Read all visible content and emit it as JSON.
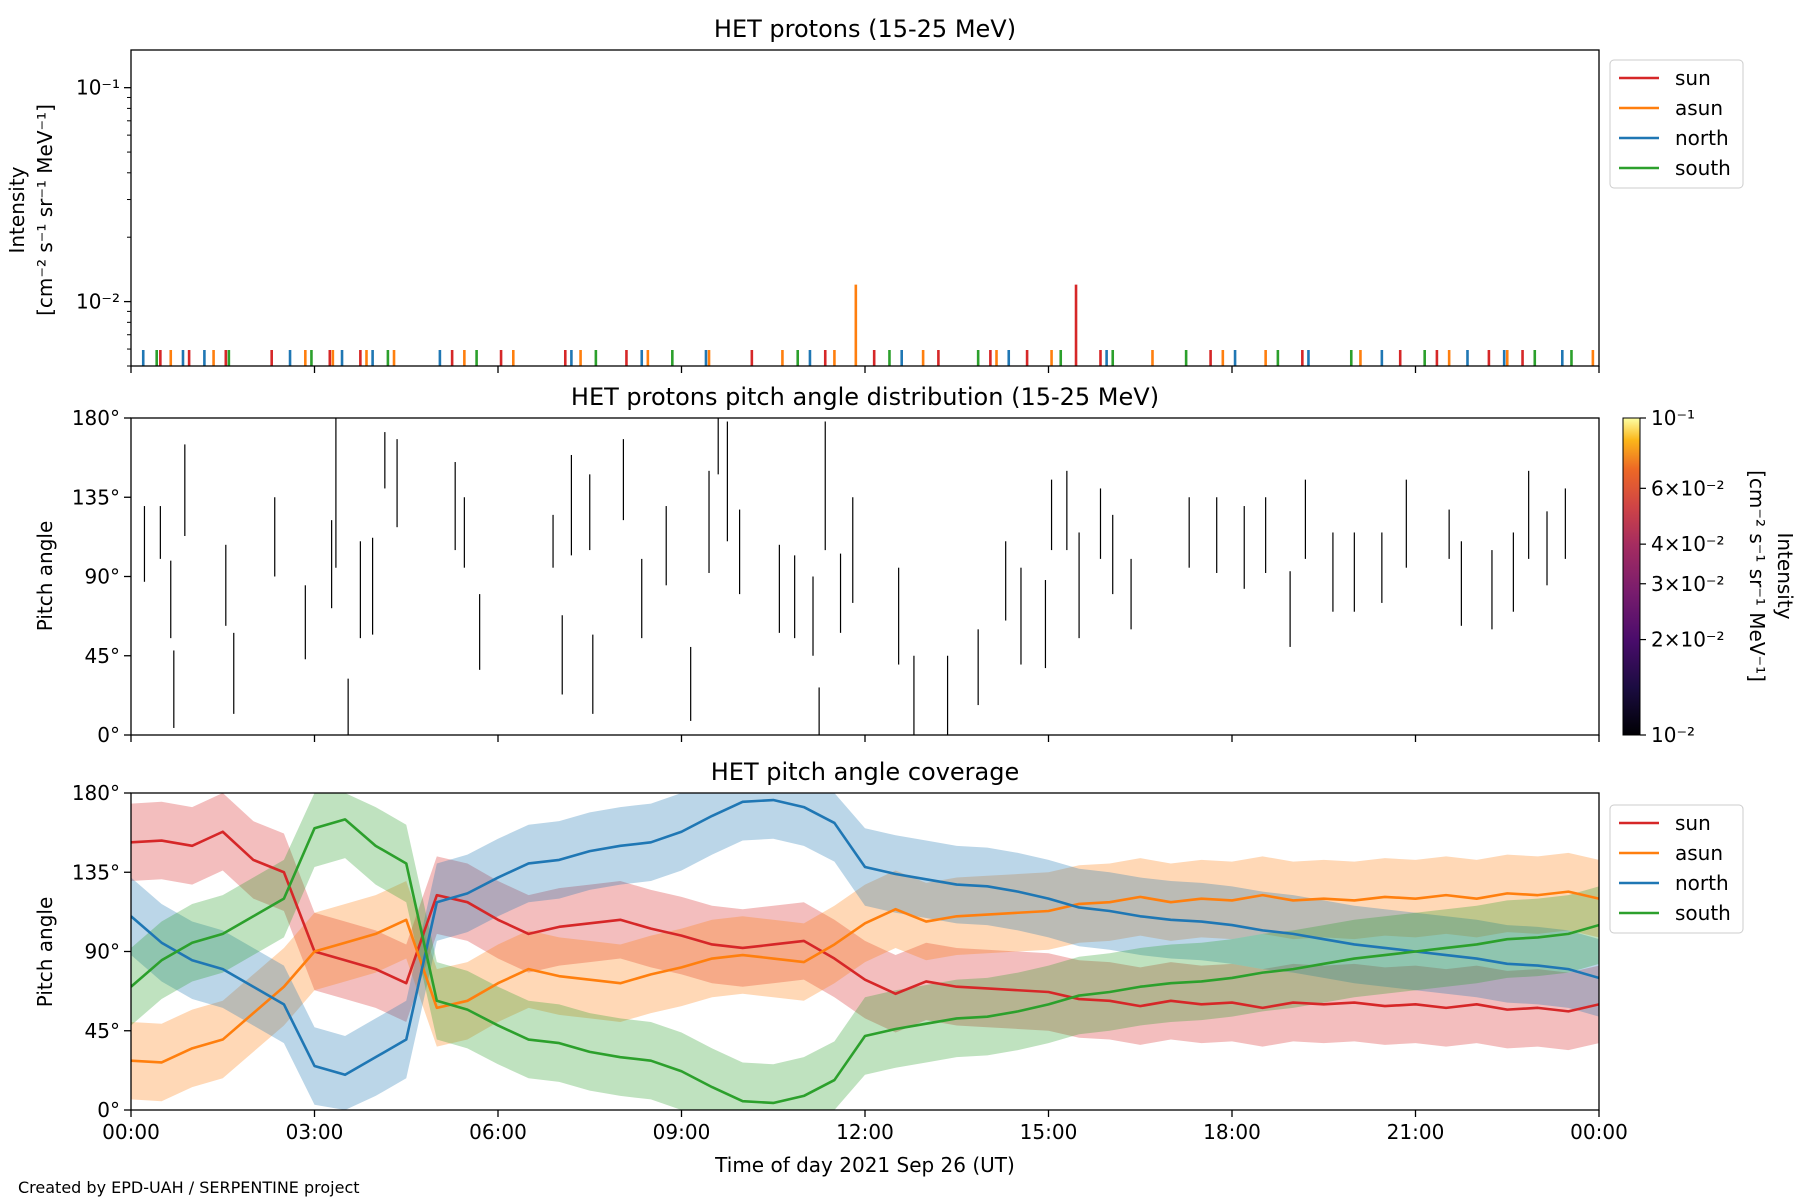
{
  "figure": {
    "credit": "Created by EPD-UAH / SERPENTINE project",
    "xlabel": "Time of day 2021 Sep 26 (UT)",
    "x_tick_labels": [
      "00:00",
      "03:00",
      "06:00",
      "09:00",
      "12:00",
      "15:00",
      "18:00",
      "21:00",
      "00:00"
    ]
  },
  "colors": {
    "sun": "#d62728",
    "asun": "#ff7f0e",
    "north": "#1f77b4",
    "south": "#2ca02c",
    "pad_line": "#000000"
  },
  "chart_data": [
    {
      "type": "line",
      "title": "HET protons (15-25 MeV)",
      "ylabel_lines": [
        "Intensity",
        "[cm⁻² s⁻¹ sr⁻¹ MeV⁻¹]"
      ],
      "yscale": "log",
      "ylim": [
        0.005,
        0.15
      ],
      "y_tick_labels": [
        {
          "value": 0.1,
          "label": "10⁻¹"
        },
        {
          "value": 0.01,
          "label": "10⁻²"
        }
      ],
      "xlim_hours": [
        0,
        24
      ],
      "legend": {
        "placement": "outside-right",
        "entries": [
          "sun",
          "asun",
          "north",
          "south"
        ]
      },
      "series": [
        {
          "name": "sun",
          "spikes_hours": [
            0.48,
            0.95,
            1.55,
            2.3,
            3.25,
            3.75,
            5.25,
            6.05,
            7.1,
            8.1,
            10.15,
            11.35,
            12.15,
            13.2,
            14.05,
            14.65,
            15.85,
            17.65,
            19.15,
            20.75,
            21.35,
            22.2,
            22.75
          ],
          "peaks": [
            {
              "hour": 15.45,
              "value": 0.012
            }
          ]
        },
        {
          "name": "asun",
          "spikes_hours": [
            0.65,
            1.35,
            2.85,
            3.3,
            3.85,
            4.3,
            5.45,
            6.25,
            7.35,
            8.45,
            9.45,
            10.65,
            11.5,
            12.95,
            14.15,
            15.05,
            16.7,
            17.85,
            18.55,
            20.1,
            21.55,
            22.5,
            23.9
          ],
          "peaks": [
            {
              "hour": 11.85,
              "value": 0.012
            }
          ]
        },
        {
          "name": "north",
          "spikes_hours": [
            0.2,
            0.85,
            1.2,
            2.6,
            3.45,
            3.95,
            5.05,
            7.2,
            8.35,
            9.4,
            11.1,
            12.6,
            14.35,
            15.95,
            18.05,
            19.25,
            20.45,
            21.85,
            22.45,
            23.4
          ],
          "peaks": []
        },
        {
          "name": "south",
          "spikes_hours": [
            0.42,
            1.6,
            2.95,
            4.2,
            5.65,
            7.6,
            8.85,
            10.9,
            12.4,
            13.85,
            15.2,
            16.05,
            17.25,
            18.75,
            19.95,
            21.15,
            22.95,
            23.55
          ],
          "peaks": []
        }
      ]
    },
    {
      "type": "heatmap",
      "title": "HET protons pitch angle distribution (15-25 MeV)",
      "ylabel": "Pitch angle",
      "ylim": [
        0,
        180
      ],
      "y_tick_labels": [
        "0°",
        "45°",
        "90°",
        "135°",
        "180°"
      ],
      "y_tick_values": [
        0,
        45,
        90,
        135,
        180
      ],
      "xlim_hours": [
        0,
        24
      ],
      "colorbar": {
        "label": "Intensity",
        "unit": "[cm⁻² s⁻¹ sr⁻¹ MeV⁻¹]",
        "scale": "log",
        "range": [
          0.01,
          0.1
        ],
        "colormap": "inferno",
        "ticks": [
          {
            "value": 0.1,
            "label": "10⁻¹"
          },
          {
            "value": 0.06,
            "label": "6×10⁻²"
          },
          {
            "value": 0.04,
            "label": "4×10⁻²"
          },
          {
            "value": 0.03,
            "label": "3×10⁻²"
          },
          {
            "value": 0.02,
            "label": "2×10⁻²"
          },
          {
            "value": 0.01,
            "label": "10⁻²"
          }
        ]
      },
      "segments": [
        [
          0.22,
          87,
          130
        ],
        [
          0.48,
          100,
          130
        ],
        [
          0.65,
          55,
          99
        ],
        [
          0.7,
          4,
          48
        ],
        [
          0.88,
          113,
          165
        ],
        [
          1.55,
          62,
          108
        ],
        [
          1.68,
          12,
          58
        ],
        [
          2.35,
          90,
          135
        ],
        [
          2.85,
          43,
          85
        ],
        [
          3.28,
          72,
          122
        ],
        [
          3.35,
          95,
          180
        ],
        [
          3.55,
          0,
          32
        ],
        [
          3.75,
          55,
          110
        ],
        [
          3.95,
          57,
          112
        ],
        [
          4.15,
          140,
          172
        ],
        [
          4.35,
          118,
          168
        ],
        [
          5.3,
          105,
          155
        ],
        [
          5.45,
          95,
          135
        ],
        [
          5.7,
          37,
          80
        ],
        [
          6.9,
          95,
          125
        ],
        [
          7.05,
          23,
          68
        ],
        [
          7.2,
          102,
          159
        ],
        [
          7.5,
          105,
          148
        ],
        [
          7.55,
          12,
          57
        ],
        [
          8.05,
          122,
          168
        ],
        [
          8.35,
          55,
          100
        ],
        [
          8.75,
          85,
          130
        ],
        [
          9.15,
          8,
          50
        ],
        [
          9.45,
          92,
          150
        ],
        [
          9.6,
          148,
          180
        ],
        [
          9.75,
          110,
          178
        ],
        [
          9.95,
          80,
          128
        ],
        [
          10.6,
          58,
          108
        ],
        [
          10.85,
          55,
          102
        ],
        [
          11.15,
          45,
          90
        ],
        [
          11.25,
          0,
          27
        ],
        [
          11.35,
          105,
          178
        ],
        [
          11.6,
          58,
          103
        ],
        [
          11.8,
          75,
          135
        ],
        [
          12.55,
          40,
          95
        ],
        [
          12.8,
          0,
          45
        ],
        [
          13.35,
          0,
          45
        ],
        [
          13.85,
          17,
          60
        ],
        [
          14.3,
          65,
          110
        ],
        [
          14.55,
          40,
          95
        ],
        [
          14.95,
          38,
          88
        ],
        [
          15.05,
          105,
          145
        ],
        [
          15.3,
          105,
          150
        ],
        [
          15.5,
          55,
          115
        ],
        [
          15.85,
          100,
          140
        ],
        [
          16.05,
          80,
          125
        ],
        [
          16.35,
          60,
          100
        ],
        [
          17.3,
          95,
          135
        ],
        [
          17.75,
          92,
          135
        ],
        [
          18.2,
          83,
          130
        ],
        [
          18.55,
          92,
          135
        ],
        [
          18.95,
          50,
          93
        ],
        [
          19.2,
          100,
          145
        ],
        [
          19.65,
          70,
          115
        ],
        [
          20.0,
          70,
          115
        ],
        [
          20.45,
          75,
          115
        ],
        [
          20.85,
          95,
          145
        ],
        [
          21.55,
          100,
          128
        ],
        [
          21.75,
          62,
          110
        ],
        [
          22.25,
          60,
          105
        ],
        [
          22.6,
          70,
          115
        ],
        [
          22.85,
          100,
          150
        ],
        [
          23.15,
          85,
          127
        ],
        [
          23.45,
          100,
          140
        ]
      ]
    },
    {
      "type": "area",
      "title": "HET pitch angle coverage",
      "ylabel": "Pitch angle",
      "ylim": [
        0,
        180
      ],
      "y_tick_labels": [
        "0°",
        "45°",
        "90°",
        "135°",
        "180°"
      ],
      "y_tick_values": [
        0,
        45,
        90,
        135,
        180
      ],
      "xlim_hours": [
        0,
        24
      ],
      "legend": {
        "placement": "outside-right",
        "entries": [
          "sun",
          "asun",
          "north",
          "south"
        ]
      },
      "band_halfwidth_deg": 22,
      "x_hours": [
        0,
        0.5,
        1,
        1.5,
        2,
        2.5,
        3,
        3.5,
        4,
        4.5,
        5,
        5.5,
        6,
        6.5,
        7,
        7.5,
        8,
        8.5,
        9,
        9.5,
        10,
        10.5,
        11,
        11.5,
        12,
        12.5,
        13,
        13.5,
        14,
        14.5,
        15,
        15.5,
        16,
        16.5,
        17,
        17.5,
        18,
        18.5,
        19,
        19.5,
        20,
        20.5,
        21,
        21.5,
        22,
        22.5,
        23,
        23.5,
        24
      ],
      "series": [
        {
          "name": "sun",
          "values": [
            152,
            153,
            150,
            158,
            142,
            135,
            90,
            85,
            80,
            72,
            122,
            118,
            108,
            100,
            104,
            106,
            108,
            103,
            99,
            94,
            92,
            94,
            96,
            86,
            74,
            66,
            73,
            70,
            69,
            68,
            67,
            63,
            62,
            59,
            62,
            60,
            61,
            58,
            61,
            60,
            61,
            59,
            60,
            58,
            60,
            57,
            58,
            56,
            60
          ]
        },
        {
          "name": "asun",
          "values": [
            28,
            27,
            35,
            40,
            55,
            70,
            90,
            95,
            100,
            108,
            58,
            62,
            72,
            80,
            76,
            74,
            72,
            77,
            81,
            86,
            88,
            86,
            84,
            94,
            106,
            114,
            107,
            110,
            111,
            112,
            113,
            117,
            118,
            121,
            118,
            120,
            119,
            122,
            119,
            120,
            119,
            121,
            120,
            122,
            120,
            123,
            122,
            124,
            120
          ]
        },
        {
          "name": "north",
          "values": [
            110,
            95,
            85,
            80,
            70,
            60,
            25,
            20,
            30,
            40,
            118,
            123,
            132,
            140,
            142,
            147,
            150,
            152,
            158,
            167,
            175,
            176,
            172,
            163,
            138,
            134,
            131,
            128,
            127,
            124,
            120,
            115,
            113,
            110,
            108,
            107,
            105,
            102,
            100,
            97,
            94,
            92,
            90,
            88,
            86,
            83,
            82,
            80,
            75
          ]
        },
        {
          "name": "south",
          "values": [
            70,
            85,
            95,
            100,
            110,
            120,
            160,
            165,
            150,
            140,
            62,
            57,
            48,
            40,
            38,
            33,
            30,
            28,
            22,
            13,
            5,
            4,
            8,
            17,
            42,
            46,
            49,
            52,
            53,
            56,
            60,
            65,
            67,
            70,
            72,
            73,
            75,
            78,
            80,
            83,
            86,
            88,
            90,
            92,
            94,
            97,
            98,
            100,
            105
          ]
        }
      ]
    }
  ]
}
